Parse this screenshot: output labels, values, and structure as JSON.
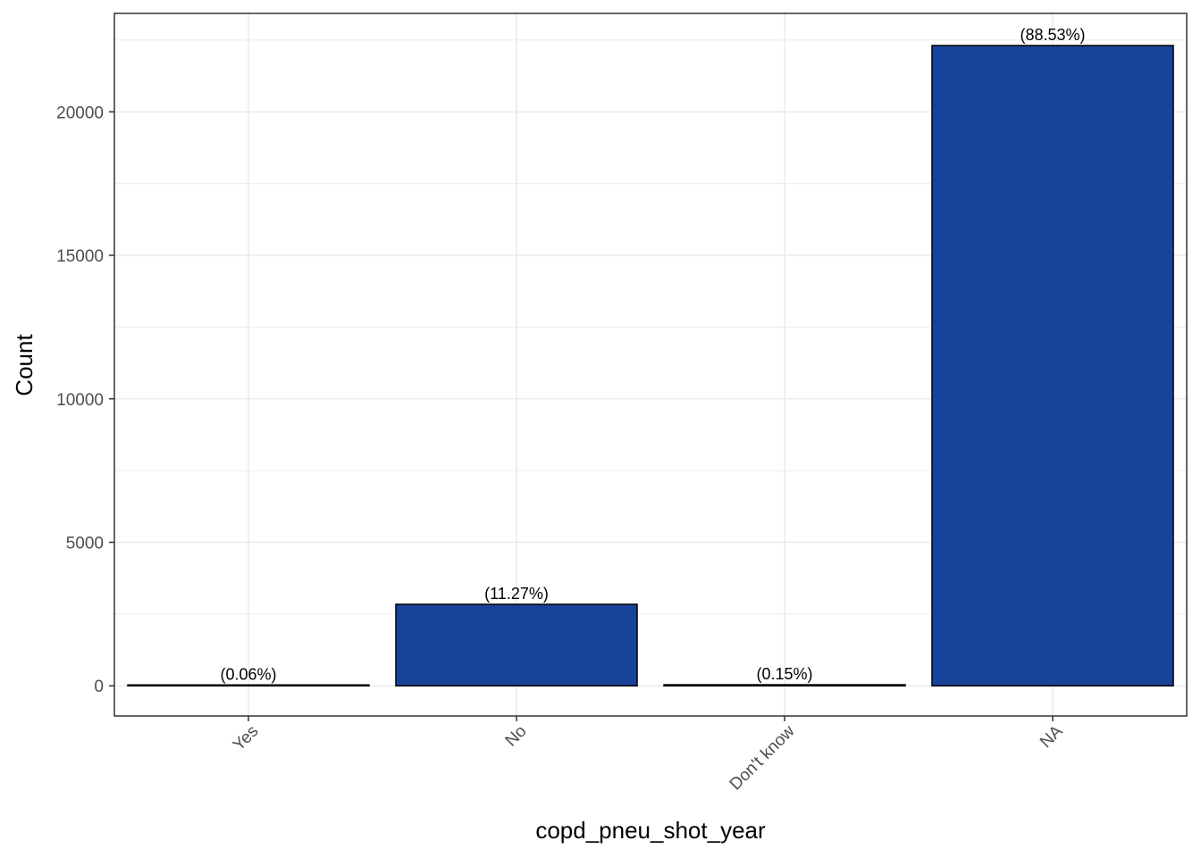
{
  "chart_data": {
    "type": "bar",
    "categories": [
      "Yes",
      "No",
      "Don't know",
      "NA"
    ],
    "values": [
      16,
      2840,
      38,
      22310
    ],
    "labels": [
      "(0.06%)",
      "(11.27%)",
      "(0.15%)",
      "(88.53%)"
    ],
    "title": "",
    "xlabel": "copd_pneu_shot_year",
    "ylabel": "Count",
    "ylim": [
      -1050,
      23430
    ],
    "yticks": [
      0,
      5000,
      10000,
      15000,
      20000
    ],
    "ytick_labels": [
      "0",
      "5000",
      "10000",
      "15000",
      "20000"
    ],
    "grid": true,
    "legend": "none",
    "colors": {
      "bar_fill": "#17449a",
      "bar_stroke": "#000000",
      "grid": "#ebebeb",
      "panel_border": "#333333"
    }
  }
}
